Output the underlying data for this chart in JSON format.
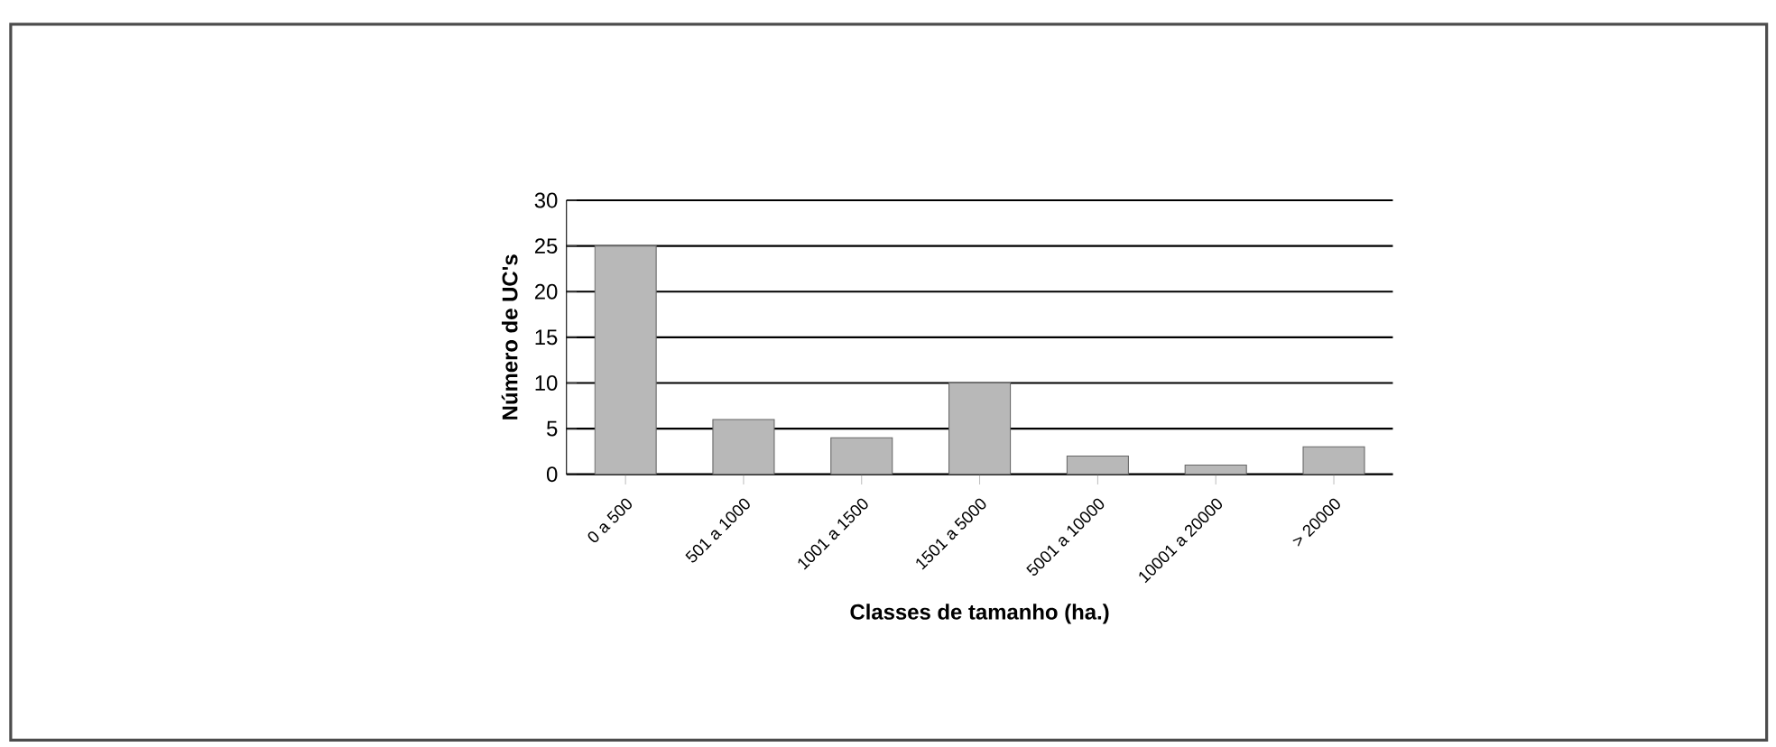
{
  "chart_data": {
    "type": "bar",
    "xlabel": "Classes de tamanho (ha.)",
    "ylabel": "Número de UC's",
    "categories": [
      "0 a 500",
      "501 a 1000",
      "1001 a 1500",
      "1501 a 5000",
      "5001 a 10000",
      "10001 a 20000",
      "> 20000"
    ],
    "values": [
      25,
      6,
      4,
      10,
      2,
      1,
      3
    ],
    "color": "#b8b8b8",
    "ylim": [
      0,
      30
    ],
    "yticks": [
      0,
      5,
      10,
      15,
      20,
      25,
      30
    ],
    "grid": "y"
  }
}
